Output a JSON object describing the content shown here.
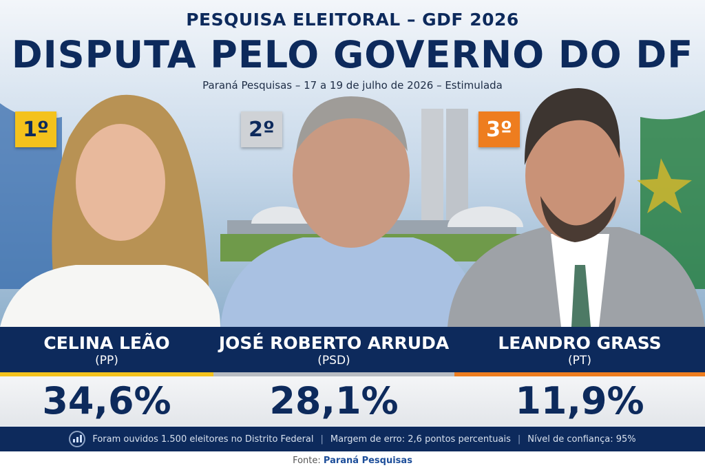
{
  "header": {
    "kicker": "PESQUISA ELEITORAL – GDF 2026",
    "title": "DISPUTA PELO GOVERNO DO DF",
    "subtitle": "Paraná Pesquisas – 17 a 19 de julho de 2026 – Estimulada"
  },
  "candidates": [
    {
      "rank": "1º",
      "name": "CELINA LEÃO",
      "party": "(PP)",
      "result": "34,6%"
    },
    {
      "rank": "2º",
      "name": "JOSÉ ROBERTO ARRUDA",
      "party": "(PSD)",
      "result": "28,1%"
    },
    {
      "rank": "3º",
      "name": "LEANDRO GRASS",
      "party": "(PT)",
      "result": "11,9%"
    }
  ],
  "footer": {
    "notes": [
      "Foram ouvidos 1.500 eleitores no Distrito Federal",
      "Margem de erro: 2,6 pontos percentuais",
      "Nível de confiança: 95%"
    ]
  },
  "source": {
    "label": "Fonte:",
    "name": "Paraná Pesquisas"
  }
}
